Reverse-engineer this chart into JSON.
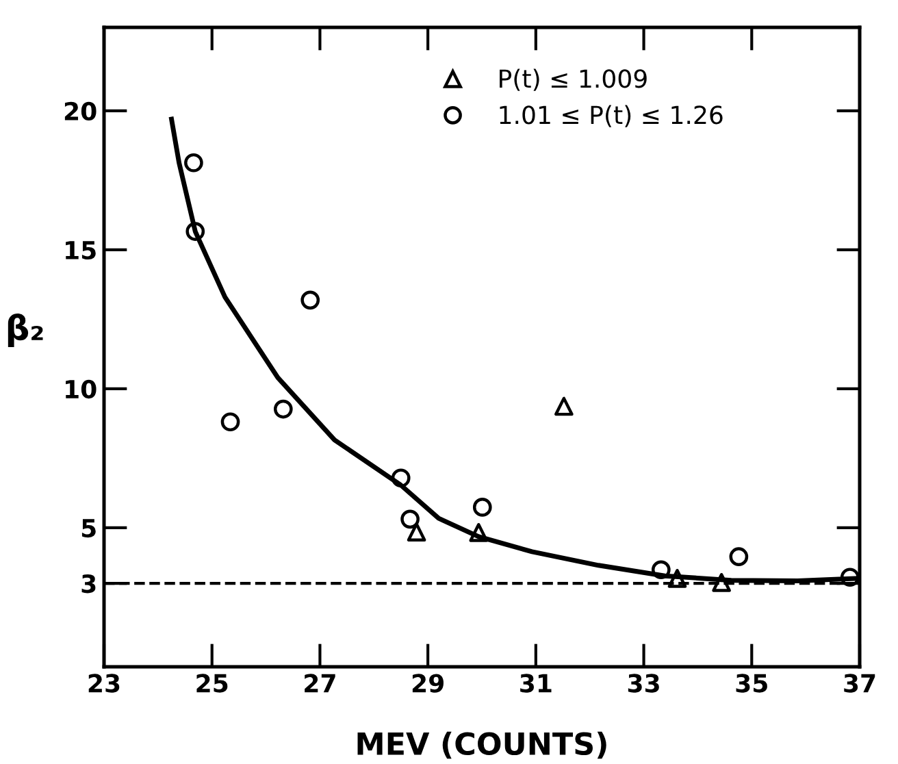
{
  "chart_data": {
    "type": "scatter",
    "xlabel": "MEV (COUNTS)",
    "ylabel": "β₂",
    "xlim": [
      23,
      37
    ],
    "xticks": [
      23,
      25,
      27,
      29,
      31,
      33,
      35,
      37
    ],
    "ylim": [
      0,
      23
    ],
    "yticks": [
      3,
      5,
      10,
      15,
      20
    ],
    "legend": "top right",
    "grid": false,
    "ref_lines": [
      {
        "axis": "y",
        "value": 3,
        "line_style": "dashed",
        "color": "#000000"
      }
    ],
    "series": [
      {
        "name": "P(t) ≤ 1.009",
        "marker": "triangle",
        "color": "#000000",
        "x": [
          28.79,
          29.94,
          31.52,
          33.62,
          34.44
        ],
        "values": [
          4.85,
          4.83,
          9.37,
          3.18,
          3.03
        ]
      },
      {
        "name": "1.01 ≤ P(t) ≤ 1.26",
        "marker": "circle",
        "color": "#000000",
        "x": [
          24.66,
          24.69,
          25.34,
          26.32,
          26.82,
          28.5,
          28.67,
          30.01,
          33.32,
          34.76,
          36.82
        ],
        "values": [
          18.13,
          15.66,
          8.81,
          9.27,
          13.19,
          6.79,
          5.31,
          5.74,
          3.49,
          3.96,
          3.22
        ]
      },
      {
        "type": "line",
        "marker": "none",
        "line_style": "solid",
        "color": "#000000",
        "x": [
          24.25,
          24.39,
          24.69,
          25.24,
          26.22,
          27.27,
          28.49,
          29.2,
          29.94,
          30.93,
          32.16,
          33.39,
          34.62,
          35.85,
          36.96
        ],
        "values": [
          19.7,
          18.13,
          15.66,
          13.3,
          10.4,
          8.16,
          6.55,
          5.34,
          4.68,
          4.14,
          3.65,
          3.27,
          3.11,
          3.09,
          3.18
        ]
      }
    ]
  }
}
